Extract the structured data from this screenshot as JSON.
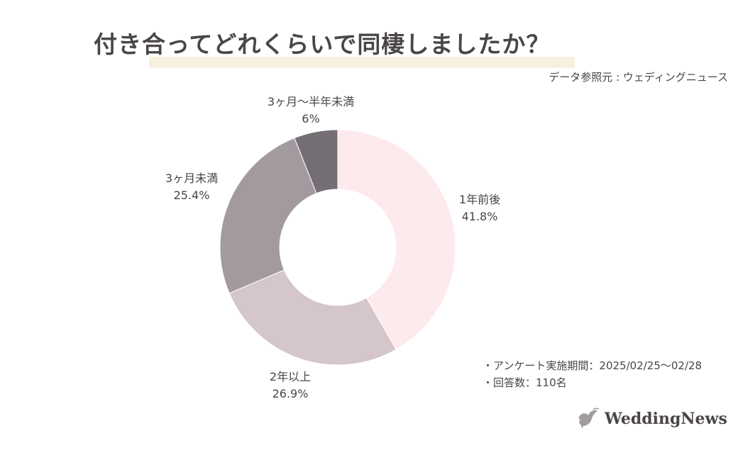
{
  "title": "付き合ってどれくらいで同棲しましたか？",
  "source": "データ参照元 : ウェディングニュース",
  "notes": {
    "period": "・アンケート実施期間：2025/02/25〜02/28",
    "respondents": "・回答数：110名"
  },
  "logo": {
    "text": "WeddingNews",
    "icon": "dove-icon"
  },
  "chart_data": {
    "type": "pie",
    "donut": true,
    "slices": [
      {
        "label": "1年前後",
        "value": 41.8,
        "display": "41.8%",
        "color": "#fdeaec"
      },
      {
        "label": "2年以上",
        "value": 26.9,
        "display": "26.9%",
        "color": "#d4c6cb"
      },
      {
        "label": "3ヶ月未満",
        "value": 25.4,
        "display": "25.4%",
        "color": "#a39a9f"
      },
      {
        "label": "3ヶ月〜半年未満",
        "value": 6,
        "display": "6%",
        "color": "#756f75"
      }
    ]
  }
}
